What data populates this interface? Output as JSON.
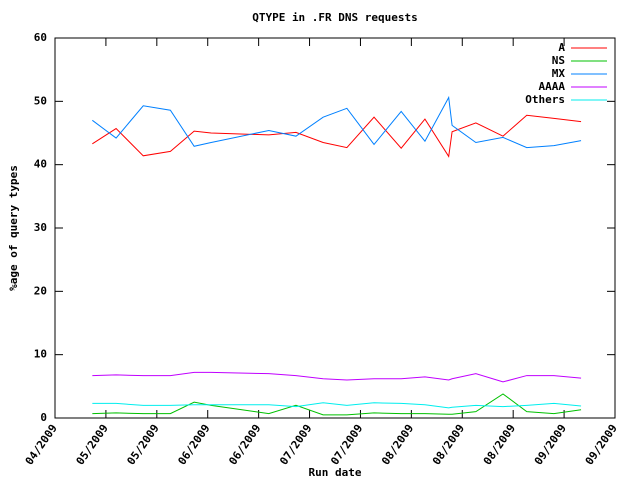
{
  "chart_data": {
    "type": "line",
    "title": "QTYPE in .FR DNS requests",
    "x_label": "Run date",
    "y_label": "%age of query types",
    "x": [
      11,
      18,
      26,
      34,
      41,
      46,
      63,
      71,
      79,
      86,
      94,
      102,
      109,
      116,
      117,
      124,
      132,
      139,
      147,
      155
    ],
    "xlim": [
      0,
      165
    ],
    "xticks": [
      {
        "value": 0,
        "label": "04/2009"
      },
      {
        "value": 15,
        "label": "05/2009"
      },
      {
        "value": 30,
        "label": "05/2009"
      },
      {
        "value": 45,
        "label": "06/2009"
      },
      {
        "value": 60,
        "label": "06/2009"
      },
      {
        "value": 75,
        "label": "07/2009"
      },
      {
        "value": 90,
        "label": "07/2009"
      },
      {
        "value": 105,
        "label": "08/2009"
      },
      {
        "value": 120,
        "label": "08/2009"
      },
      {
        "value": 135,
        "label": "08/2009"
      },
      {
        "value": 150,
        "label": "09/2009"
      },
      {
        "value": 165,
        "label": "09/2009"
      }
    ],
    "ylim": [
      0,
      60
    ],
    "yticks": [
      0,
      10,
      20,
      30,
      40,
      50,
      60
    ],
    "legend": "top-right",
    "series": [
      {
        "name": "A",
        "color": "#ff0000",
        "values": [
          43.3,
          45.7,
          41.4,
          42.1,
          45.3,
          45.0,
          44.7,
          45.1,
          43.5,
          42.7,
          47.5,
          42.6,
          47.2,
          41.3,
          45.2,
          46.6,
          44.5,
          47.8,
          47.3,
          46.8
        ]
      },
      {
        "name": "NS",
        "color": "#00c000",
        "values": [
          0.7,
          0.8,
          0.7,
          0.7,
          2.5,
          2.0,
          0.7,
          2.0,
          0.5,
          0.5,
          0.8,
          0.7,
          0.7,
          0.6,
          0.6,
          1.0,
          3.8,
          1.0,
          0.7,
          1.3
        ]
      },
      {
        "name": "MX",
        "color": "#0080ff",
        "values": [
          47.0,
          44.2,
          49.3,
          48.6,
          42.9,
          43.5,
          45.4,
          44.5,
          47.5,
          48.9,
          43.2,
          48.4,
          43.7,
          50.6,
          46.2,
          43.5,
          44.3,
          42.7,
          43.0,
          43.8
        ]
      },
      {
        "name": "AAAA",
        "color": "#c000ff",
        "values": [
          6.7,
          6.8,
          6.7,
          6.7,
          7.2,
          7.2,
          7.0,
          6.7,
          6.2,
          6.0,
          6.2,
          6.2,
          6.5,
          6.0,
          6.2,
          7.0,
          5.7,
          6.7,
          6.7,
          6.3
        ]
      },
      {
        "name": "Others",
        "color": "#00eeee",
        "values": [
          2.3,
          2.3,
          2.0,
          2.0,
          2.1,
          2.1,
          2.1,
          1.8,
          2.4,
          2.0,
          2.4,
          2.3,
          2.1,
          1.6,
          1.7,
          2.0,
          1.8,
          2.0,
          2.3,
          1.9
        ]
      }
    ]
  }
}
